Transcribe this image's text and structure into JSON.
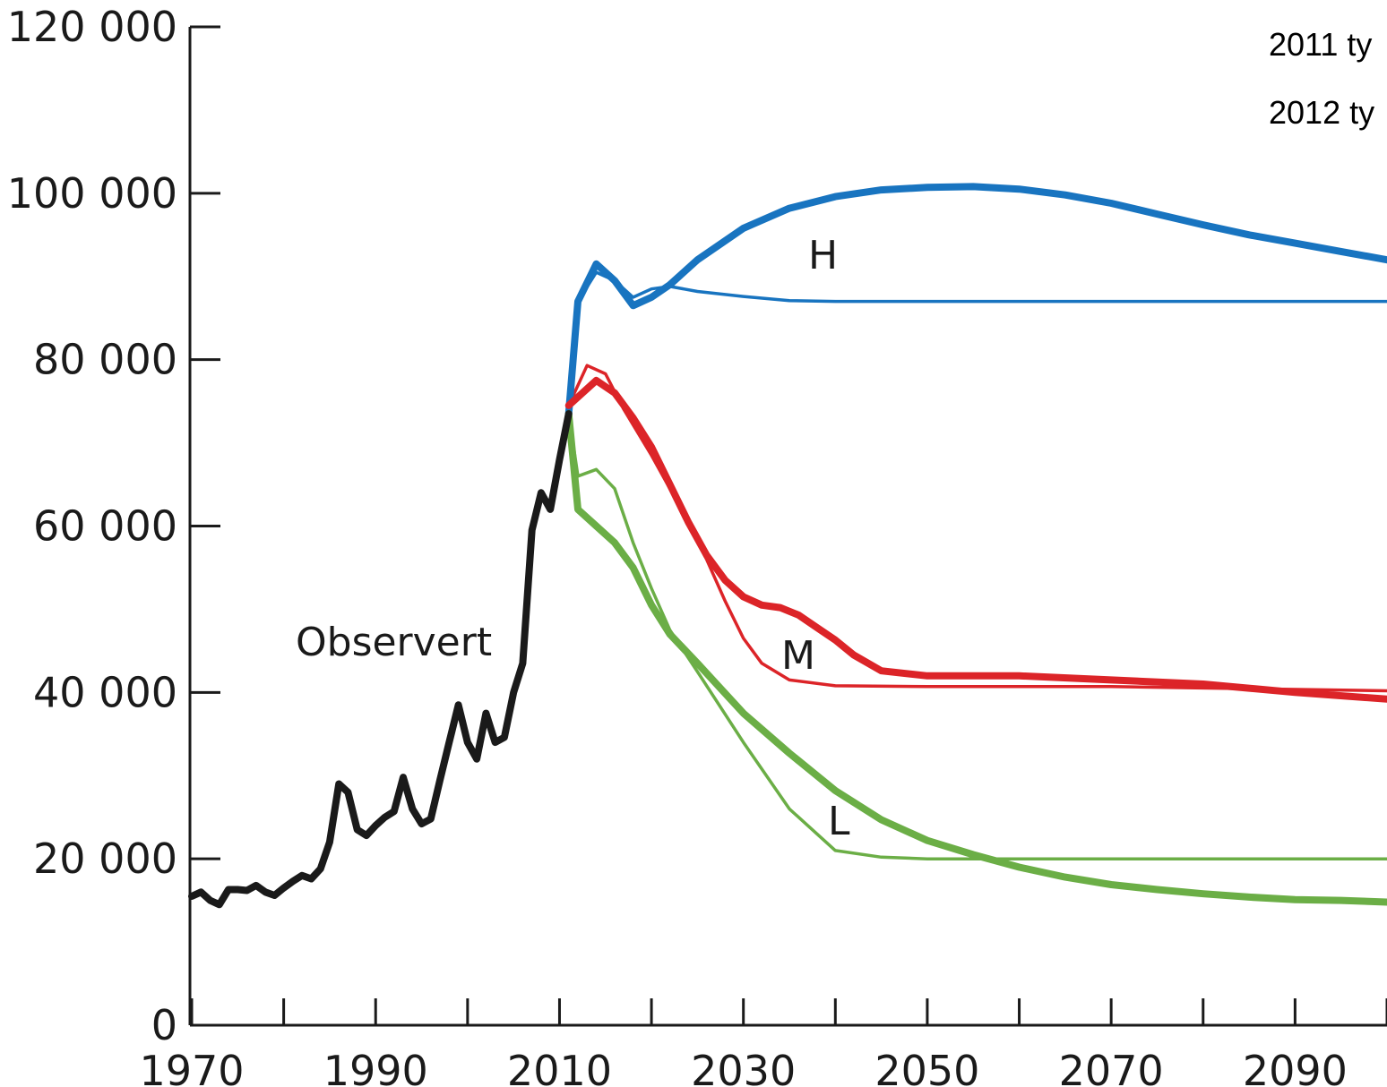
{
  "chart_data": {
    "type": "line",
    "title": "",
    "xlabel": "",
    "ylabel": "",
    "xlim": [
      1970,
      2100
    ],
    "ylim": [
      0,
      120000
    ],
    "x_ticks": [
      1970,
      1990,
      2010,
      2030,
      2050,
      2070,
      2090
    ],
    "y_ticks": [
      0,
      20000,
      40000,
      60000,
      80000,
      100000,
      120000
    ],
    "x_tick_labels": [
      "1970",
      "1990",
      "2010",
      "2030",
      "2050",
      "2070",
      "2090"
    ],
    "y_tick_labels": [
      "0",
      "20 000",
      "40 000",
      "60 000",
      "80 000",
      "100 000",
      "120 000"
    ],
    "legend_entries": [
      "2011 ty",
      "2012 ty"
    ],
    "legend_position": "top-right",
    "grid": false,
    "annotations": [
      {
        "text": "Observert",
        "series": "observed"
      },
      {
        "text": "H",
        "series": "high"
      },
      {
        "text": "M",
        "series": "medium"
      },
      {
        "text": "L",
        "series": "low"
      }
    ],
    "colors": {
      "observed": "#1a1a1a",
      "high": "#1874c0",
      "medium": "#dc2428",
      "low": "#6bae46"
    },
    "series": [
      {
        "id": "observed",
        "label_ref": "Observert",
        "style": "thick",
        "points": [
          [
            1970,
            15500
          ],
          [
            1971,
            16000
          ],
          [
            1972,
            15000
          ],
          [
            1973,
            14500
          ],
          [
            1974,
            16300
          ],
          [
            1975,
            16300
          ],
          [
            1976,
            16200
          ],
          [
            1977,
            16800
          ],
          [
            1978,
            16000
          ],
          [
            1979,
            15600
          ],
          [
            1980,
            16500
          ],
          [
            1981,
            17300
          ],
          [
            1982,
            18000
          ],
          [
            1983,
            17600
          ],
          [
            1984,
            18800
          ],
          [
            1985,
            22000
          ],
          [
            1986,
            29000
          ],
          [
            1987,
            28000
          ],
          [
            1988,
            23500
          ],
          [
            1989,
            22800
          ],
          [
            1990,
            24000
          ],
          [
            1991,
            25000
          ],
          [
            1992,
            25700
          ],
          [
            1993,
            29800
          ],
          [
            1994,
            26000
          ],
          [
            1995,
            24200
          ],
          [
            1996,
            24800
          ],
          [
            1997,
            29500
          ],
          [
            1998,
            34000
          ],
          [
            1999,
            38500
          ],
          [
            2000,
            34000
          ],
          [
            2001,
            32000
          ],
          [
            2002,
            37500
          ],
          [
            2003,
            34000
          ],
          [
            2004,
            34600
          ],
          [
            2005,
            40000
          ],
          [
            2006,
            43500
          ],
          [
            2007,
            59500
          ],
          [
            2008,
            64000
          ],
          [
            2009,
            62000
          ],
          [
            2010,
            68000
          ],
          [
            2011,
            73500
          ]
        ]
      },
      {
        "id": "high_2012",
        "label_ref": "2012 ty",
        "style": "thick",
        "points": [
          [
            2011,
            73500
          ],
          [
            2012,
            87000
          ],
          [
            2014,
            91500
          ],
          [
            2016,
            89500
          ],
          [
            2018,
            86500
          ],
          [
            2020,
            87500
          ],
          [
            2022,
            89000
          ],
          [
            2025,
            92000
          ],
          [
            2030,
            95800
          ],
          [
            2035,
            98200
          ],
          [
            2040,
            99600
          ],
          [
            2045,
            100400
          ],
          [
            2050,
            100700
          ],
          [
            2055,
            100800
          ],
          [
            2060,
            100500
          ],
          [
            2065,
            99800
          ],
          [
            2070,
            98800
          ],
          [
            2075,
            97500
          ],
          [
            2080,
            96200
          ],
          [
            2085,
            95000
          ],
          [
            2090,
            94000
          ],
          [
            2095,
            93000
          ],
          [
            2100,
            92000
          ]
        ]
      },
      {
        "id": "high_2011",
        "label_ref": "2011 ty",
        "style": "thin",
        "points": [
          [
            2011,
            73500
          ],
          [
            2012,
            87000
          ],
          [
            2014,
            90500
          ],
          [
            2016,
            89500
          ],
          [
            2018,
            87500
          ],
          [
            2020,
            88500
          ],
          [
            2022,
            88800
          ],
          [
            2025,
            88200
          ],
          [
            2030,
            87600
          ],
          [
            2035,
            87100
          ],
          [
            2040,
            87000
          ],
          [
            2050,
            87000
          ],
          [
            2070,
            87000
          ],
          [
            2100,
            87000
          ]
        ]
      },
      {
        "id": "medium_2012",
        "label_ref": "2012 ty",
        "style": "thick",
        "points": [
          [
            2011,
            74500
          ],
          [
            2014,
            77500
          ],
          [
            2016,
            76000
          ],
          [
            2018,
            73000
          ],
          [
            2020,
            69500
          ],
          [
            2022,
            65000
          ],
          [
            2024,
            60500
          ],
          [
            2026,
            56500
          ],
          [
            2028,
            53500
          ],
          [
            2030,
            51500
          ],
          [
            2032,
            50500
          ],
          [
            2034,
            50200
          ],
          [
            2036,
            49300
          ],
          [
            2038,
            47800
          ],
          [
            2040,
            46300
          ],
          [
            2042,
            44500
          ],
          [
            2045,
            42600
          ],
          [
            2050,
            42000
          ],
          [
            2060,
            42000
          ],
          [
            2070,
            41500
          ],
          [
            2080,
            41000
          ],
          [
            2090,
            40000
          ],
          [
            2100,
            39200
          ]
        ]
      },
      {
        "id": "medium_2011",
        "label_ref": "2011 ty",
        "style": "thin",
        "points": [
          [
            2011,
            74500
          ],
          [
            2013,
            79300
          ],
          [
            2015,
            78300
          ],
          [
            2017,
            74000
          ],
          [
            2020,
            68500
          ],
          [
            2023,
            62500
          ],
          [
            2026,
            56000
          ],
          [
            2028,
            51000
          ],
          [
            2030,
            46500
          ],
          [
            2032,
            43500
          ],
          [
            2035,
            41500
          ],
          [
            2040,
            40800
          ],
          [
            2050,
            40700
          ],
          [
            2070,
            40700
          ],
          [
            2100,
            40200
          ]
        ]
      },
      {
        "id": "low_2012",
        "label_ref": "2012 ty",
        "style": "thick",
        "points": [
          [
            2011,
            73500
          ],
          [
            2012,
            62000
          ],
          [
            2014,
            60000
          ],
          [
            2016,
            58000
          ],
          [
            2018,
            55000
          ],
          [
            2020,
            50500
          ],
          [
            2022,
            47000
          ],
          [
            2025,
            43500
          ],
          [
            2030,
            37500
          ],
          [
            2035,
            32700
          ],
          [
            2040,
            28200
          ],
          [
            2045,
            24700
          ],
          [
            2050,
            22200
          ],
          [
            2055,
            20500
          ],
          [
            2060,
            19000
          ],
          [
            2065,
            17800
          ],
          [
            2070,
            16900
          ],
          [
            2075,
            16300
          ],
          [
            2080,
            15800
          ],
          [
            2085,
            15400
          ],
          [
            2090,
            15100
          ],
          [
            2095,
            15000
          ],
          [
            2100,
            14800
          ]
        ]
      },
      {
        "id": "low_2011",
        "label_ref": "2011 ty",
        "style": "thin",
        "points": [
          [
            2011,
            73500
          ],
          [
            2012,
            66000
          ],
          [
            2014,
            66800
          ],
          [
            2016,
            64500
          ],
          [
            2018,
            58000
          ],
          [
            2020,
            52500
          ],
          [
            2022,
            47500
          ],
          [
            2025,
            42500
          ],
          [
            2030,
            34000
          ],
          [
            2035,
            26000
          ],
          [
            2040,
            21000
          ],
          [
            2045,
            20200
          ],
          [
            2050,
            20000
          ],
          [
            2070,
            20000
          ],
          [
            2100,
            20000
          ]
        ]
      }
    ]
  }
}
